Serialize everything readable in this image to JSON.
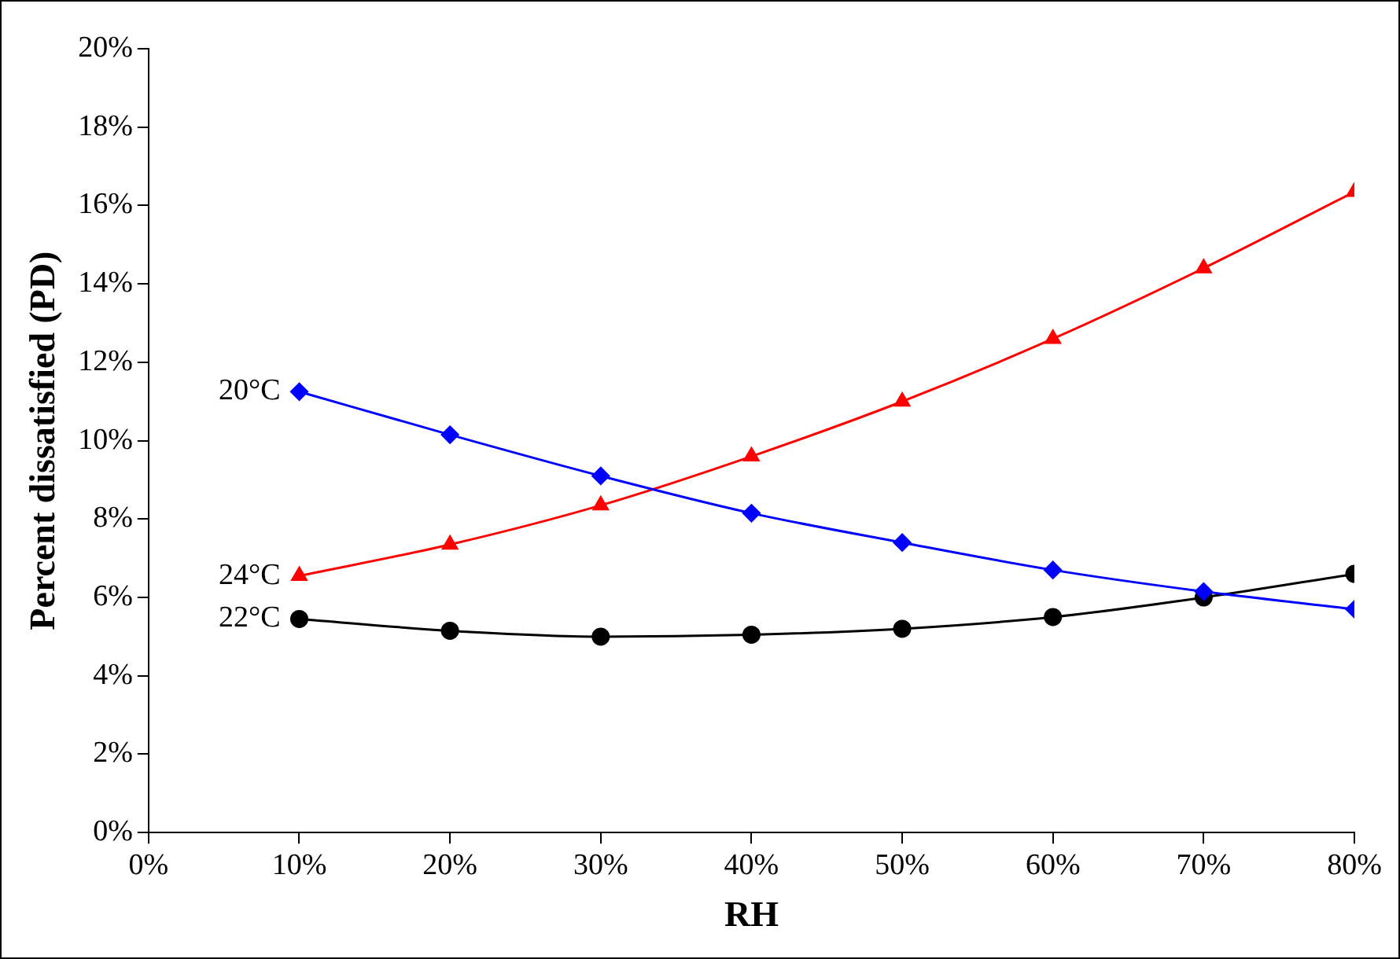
{
  "chart_data": {
    "type": "line",
    "xlabel": "RH",
    "ylabel": "Percent dissatisfied (PD)",
    "x": [
      10,
      20,
      30,
      40,
      50,
      60,
      70,
      80
    ],
    "xlim": [
      0,
      80
    ],
    "xticks": [
      {
        "value": 0,
        "label": "0%"
      },
      {
        "value": 10,
        "label": "10%"
      },
      {
        "value": 20,
        "label": "20%"
      },
      {
        "value": 30,
        "label": "30%"
      },
      {
        "value": 40,
        "label": "40%"
      },
      {
        "value": 50,
        "label": "50%"
      },
      {
        "value": 60,
        "label": "60%"
      },
      {
        "value": 70,
        "label": "70%"
      },
      {
        "value": 80,
        "label": "80%"
      }
    ],
    "ylim": [
      0,
      20
    ],
    "yticks": [
      {
        "value": 0,
        "label": "0%"
      },
      {
        "value": 2,
        "label": "2%"
      },
      {
        "value": 4,
        "label": "4%"
      },
      {
        "value": 6,
        "label": "6%"
      },
      {
        "value": 8,
        "label": "8%"
      },
      {
        "value": 10,
        "label": "10%"
      },
      {
        "value": 12,
        "label": "12%"
      },
      {
        "value": 14,
        "label": "14%"
      },
      {
        "value": 16,
        "label": "16%"
      },
      {
        "value": 18,
        "label": "18%"
      },
      {
        "value": 20,
        "label": "20%"
      }
    ],
    "grid": false,
    "legend": false,
    "line_style": "solid",
    "series": [
      {
        "name": "20°C",
        "color": "#0000ff",
        "marker": "diamond",
        "values": [
          11.25,
          10.15,
          9.1,
          8.15,
          7.4,
          6.7,
          6.15,
          5.7
        ]
      },
      {
        "name": "24°C",
        "color": "#ff0000",
        "marker": "triangle",
        "values": [
          6.55,
          7.35,
          8.35,
          9.6,
          11.0,
          12.6,
          14.4,
          16.35
        ]
      },
      {
        "name": "22°C",
        "color": "#000000",
        "marker": "circle",
        "values": [
          5.45,
          5.15,
          5.0,
          5.05,
          5.2,
          5.5,
          6.0,
          6.6
        ]
      }
    ]
  }
}
